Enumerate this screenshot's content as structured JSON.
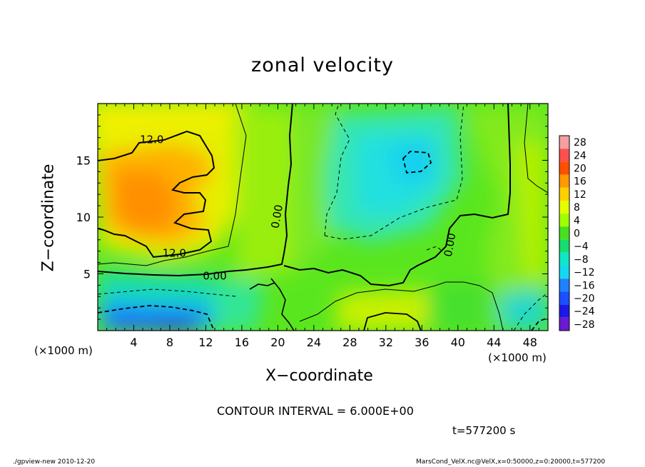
{
  "chart_data": {
    "type": "heatmap",
    "title": "zonal velocity",
    "xlabel": "X−coordinate",
    "ylabel": "Z−coordinate",
    "x_unit_label": "(×1000 m)",
    "z_unit_label": "(×1000 m)",
    "xlim": [
      0,
      50
    ],
    "ylim": [
      0,
      20
    ],
    "x_ticks": [
      "4",
      "8",
      "12",
      "16",
      "20",
      "24",
      "28",
      "32",
      "36",
      "40",
      "44",
      "48"
    ],
    "x_tick_values": [
      4,
      8,
      12,
      16,
      20,
      24,
      28,
      32,
      36,
      40,
      44,
      48
    ],
    "y_ticks": [
      "5",
      "10",
      "15"
    ],
    "y_tick_values": [
      5,
      10,
      15
    ],
    "contour_labels": [
      {
        "text": "12.0",
        "x": 6.0,
        "z": 16.5
      },
      {
        "text": "12.0",
        "x": 8.5,
        "z": 6.5
      },
      {
        "text": "0.00",
        "x": 13.0,
        "z": 4.5
      },
      {
        "text": "0.00",
        "x": 20.3,
        "z": 10.0
      },
      {
        "text": "0.00",
        "x": 39.5,
        "z": 7.5
      }
    ],
    "colorbar": {
      "labels": [
        "28",
        "24",
        "20",
        "16",
        "12",
        "8",
        "4",
        "0",
        "−4",
        "−8",
        "−12",
        "−16",
        "−20",
        "−24",
        "−28"
      ],
      "values": [
        28,
        24,
        20,
        16,
        12,
        8,
        4,
        0,
        -4,
        -8,
        -12,
        -16,
        -20,
        -24,
        -28
      ],
      "colors": [
        "#f5a0a0",
        "#ff5050",
        "#ff5000",
        "#ff9a00",
        "#ffd000",
        "#e6ff00",
        "#a0ff00",
        "#46e01e",
        "#18dc6e",
        "#10e6c8",
        "#14d8f0",
        "#1e82ff",
        "#1a50ff",
        "#1a1ae6",
        "#6a1ad2"
      ]
    },
    "contour_interval": "CONTOUR INTERVAL = 6.000E+00"
  },
  "annotations": {
    "time": "t=577200 s",
    "footer_left": "./gpview-new  2010-12-20",
    "footer_right": "MarsCond_VelX.nc@VelX,x=0:50000,z=0:20000,t=577200"
  }
}
